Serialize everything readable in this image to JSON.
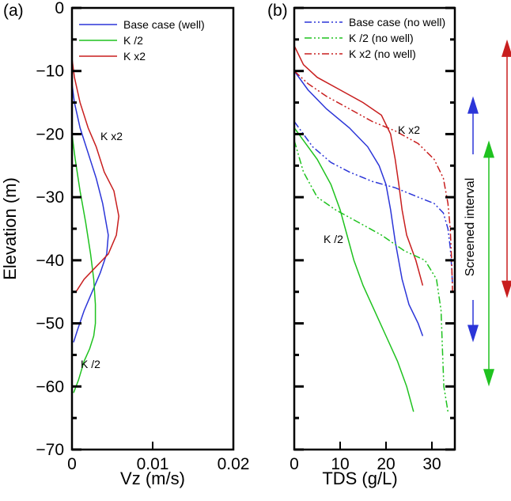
{
  "chart_data": [
    {
      "type": "line",
      "panel_label": "(a)",
      "xlabel": "Vz (m/s)",
      "ylabel": "Elevation (m)",
      "xlim": [
        0,
        0.02
      ],
      "ylim": [
        -70,
        0
      ],
      "x_ticks": [
        0,
        0.01,
        0.02
      ],
      "x_tick_labels": [
        "0",
        "0.01",
        "0.02"
      ],
      "y_ticks": [
        0,
        -10,
        -20,
        -30,
        -40,
        -50,
        -60,
        -70
      ],
      "y_tick_labels": [
        "0",
        "−10",
        "−20",
        "−30",
        "−40",
        "−50",
        "−60",
        "−70"
      ],
      "grid": false,
      "legend_position": "top-right",
      "series": [
        {
          "name": "Base case (well)",
          "color": "#2b35d8",
          "dash": "solid",
          "x": [
            0,
            0.0003,
            0.001,
            0.002,
            0.003,
            0.0038,
            0.0045,
            0.0043,
            0.0035,
            0.0025,
            0.0015,
            0.0007,
            0.0002
          ],
          "y": [
            -12,
            -15,
            -19,
            -23,
            -27,
            -31,
            -36,
            -39,
            -42,
            -45,
            -48,
            -51,
            -53
          ]
        },
        {
          "name": "K /2",
          "color": "#1fc21f",
          "dash": "solid",
          "x": [
            0,
            0.0004,
            0.001,
            0.0017,
            0.0023,
            0.0027,
            0.0029,
            0.0029,
            0.0027,
            0.0022,
            0.0015,
            0.0008,
            0.0002
          ],
          "y": [
            -20,
            -24,
            -29,
            -34,
            -39,
            -43,
            -47,
            -50,
            -52,
            -54,
            -56,
            -59,
            -61
          ]
        },
        {
          "name": "K x2",
          "color": "#c81e1e",
          "dash": "solid",
          "x": [
            0,
            0.0003,
            0.001,
            0.002,
            0.003,
            0.004,
            0.0052,
            0.0058,
            0.0055,
            0.0045,
            0.003,
            0.0015,
            0.0005
          ],
          "y": [
            -8,
            -11,
            -15,
            -19,
            -22,
            -26,
            -29,
            -33,
            -36,
            -39,
            -41,
            -43,
            -45
          ]
        }
      ],
      "annotations": [
        "K x2",
        "K /2"
      ]
    },
    {
      "type": "line",
      "panel_label": "(b)",
      "xlabel": "TDS (g/L)",
      "ylabel": "",
      "xlim": [
        0,
        35
      ],
      "ylim": [
        -70,
        0
      ],
      "x_ticks": [
        0,
        10,
        20,
        30
      ],
      "x_tick_labels": [
        "0",
        "10",
        "20",
        "30"
      ],
      "grid": false,
      "legend_position": "top",
      "series": [
        {
          "name": "Base case (well)",
          "in_legend": false,
          "color": "#2b35d8",
          "dash": "solid",
          "x": [
            0,
            3,
            7,
            12,
            16,
            18.5,
            20,
            21,
            22,
            23.5,
            25,
            27,
            28
          ],
          "y": [
            -10,
            -13,
            -16,
            -19,
            -22,
            -25,
            -28,
            -32,
            -37,
            -43,
            -47,
            -50,
            -52
          ]
        },
        {
          "name": "K /2",
          "in_legend": false,
          "color": "#1fc21f",
          "dash": "solid",
          "x": [
            0,
            2,
            5,
            8,
            10,
            11.5,
            13,
            15,
            17.5,
            20,
            22.5,
            24.5,
            26
          ],
          "y": [
            -19,
            -21,
            -24,
            -28,
            -32,
            -36,
            -40,
            -44,
            -48,
            -52,
            -56,
            -60,
            -64
          ]
        },
        {
          "name": "K x2",
          "in_legend": false,
          "color": "#c81e1e",
          "dash": "solid",
          "x": [
            0,
            2,
            5,
            10,
            15,
            19,
            21,
            22,
            22.8,
            23.5,
            24.5,
            26.5,
            28
          ],
          "y": [
            -6,
            -9,
            -11,
            -13,
            -15,
            -17,
            -20,
            -24,
            -28,
            -32,
            -36,
            -40,
            -44
          ]
        },
        {
          "name": "Base case (no well)",
          "color": "#2b35d8",
          "dash": "dashdotdot",
          "x": [
            0,
            4,
            8,
            12,
            17,
            22,
            27,
            30.5,
            32.5,
            33.5,
            34,
            34.3,
            34.5
          ],
          "y": [
            -18,
            -22,
            -24.5,
            -26,
            -27.5,
            -28.5,
            -30,
            -31,
            -32.5,
            -35,
            -38,
            -41,
            -44
          ]
        },
        {
          "name": "K /2 (no well)",
          "color": "#1fc21f",
          "dash": "dashdotdot",
          "x": [
            0,
            2,
            5,
            9,
            14,
            19,
            24,
            28.5,
            31,
            32,
            32.3,
            32.6,
            33.5
          ],
          "y": [
            -21,
            -26,
            -30,
            -32,
            -34,
            -36,
            -38.5,
            -40,
            -43,
            -48,
            -54,
            -60,
            -64
          ]
        },
        {
          "name": "K x2 (no well)",
          "color": "#c81e1e",
          "dash": "dashdotdot",
          "x": [
            0,
            3,
            7,
            12,
            17,
            22,
            27,
            30.5,
            32.5,
            33.5,
            34,
            34.3,
            34.5
          ],
          "y": [
            -10,
            -12,
            -14,
            -16,
            -18,
            -19.5,
            -21.5,
            -24,
            -27,
            -31,
            -35,
            -40,
            -45
          ]
        }
      ],
      "annotations": [
        "K x2",
        "K /2"
      ],
      "side_annotation": "Screened interval",
      "interval_arrows": [
        {
          "color": "#2b35d8",
          "y_top": -14,
          "y_bottom": -53
        },
        {
          "color": "#1fc21f",
          "y_top": -21,
          "y_bottom": -60
        },
        {
          "color": "#c81e1e",
          "y_top": -5,
          "y_bottom": -46
        }
      ]
    }
  ]
}
